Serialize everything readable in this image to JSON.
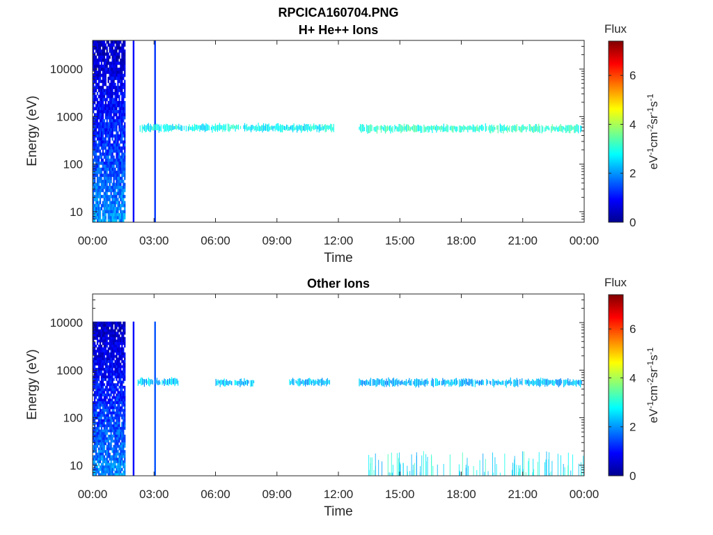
{
  "figure": {
    "filename": "RPCICA160704.PNG"
  },
  "colormap": [
    "#00008f",
    "#0000ff",
    "#0080ff",
    "#00ffff",
    "#80ff80",
    "#ffff00",
    "#ff8000",
    "#ff0000",
    "#800000"
  ],
  "chart_data": [
    {
      "type": "heatmap",
      "title": "RPCICA160704.PNG",
      "subtitle": "H+ He++ Ions",
      "xlabel": "Time",
      "ylabel": "Energy (eV)",
      "x_ticks": [
        "00:00",
        "03:00",
        "06:00",
        "09:00",
        "12:00",
        "15:00",
        "18:00",
        "21:00",
        "00:00"
      ],
      "x_tick_hours": [
        0,
        3,
        6,
        9,
        12,
        15,
        18,
        21,
        24
      ],
      "xlim_hours": [
        0,
        24
      ],
      "y_ticks": [
        "10",
        "100",
        "1000",
        "10000"
      ],
      "y_tick_values": [
        10,
        100,
        1000,
        10000
      ],
      "y_scale": "log",
      "ylim": [
        6,
        40000
      ],
      "colorbar": {
        "label": "Flux",
        "units": "eV-1cm-2sr-1s-1",
        "ticks": [
          "0",
          "2",
          "4",
          "6"
        ],
        "tick_values": [
          0,
          2,
          4,
          6
        ],
        "range": [
          0,
          7.4
        ]
      },
      "features": [
        {
          "kind": "broadband_burst",
          "t_start": 0.0,
          "t_end": 1.6,
          "e_min": 6,
          "e_max": 40000,
          "flux": 1.0
        },
        {
          "kind": "vertical_line",
          "t": 2.0,
          "e_min": 6,
          "e_max": 40000,
          "flux": 1.0
        },
        {
          "kind": "vertical_line",
          "t": 3.05,
          "e_min": 6,
          "e_max": 40000,
          "flux": 1.3
        },
        {
          "kind": "band",
          "t_start": 2.3,
          "t_end": 11.8,
          "energy": 580,
          "flux": 2.8
        },
        {
          "kind": "band",
          "t_start": 13.0,
          "t_end": 23.9,
          "energy": 560,
          "flux": 3.1
        }
      ]
    },
    {
      "type": "heatmap",
      "title": "Other Ions",
      "xlabel": "Time",
      "ylabel": "Energy (eV)",
      "x_ticks": [
        "00:00",
        "03:00",
        "06:00",
        "09:00",
        "12:00",
        "15:00",
        "18:00",
        "21:00",
        "00:00"
      ],
      "x_tick_hours": [
        0,
        3,
        6,
        9,
        12,
        15,
        18,
        21,
        24
      ],
      "xlim_hours": [
        0,
        24
      ],
      "y_ticks": [
        "10",
        "100",
        "1000",
        "10000"
      ],
      "y_tick_values": [
        10,
        100,
        1000,
        10000
      ],
      "y_scale": "log",
      "ylim": [
        6,
        40000
      ],
      "colorbar": {
        "label": "Flux",
        "units": "eV-1cm-2sr-1s-1",
        "ticks": [
          "0",
          "2",
          "4",
          "6"
        ],
        "tick_values": [
          0,
          2,
          4,
          6
        ],
        "range": [
          0,
          7.4
        ]
      },
      "features": [
        {
          "kind": "broadband_burst",
          "t_start": 0.0,
          "t_end": 1.6,
          "e_min": 6,
          "e_max": 10500,
          "flux": 1.0
        },
        {
          "kind": "vertical_line",
          "t": 2.0,
          "e_min": 6,
          "e_max": 10500,
          "flux": 1.0
        },
        {
          "kind": "vertical_line",
          "t": 3.05,
          "e_min": 6,
          "e_max": 10500,
          "flux": 1.5
        },
        {
          "kind": "band",
          "t_start": 2.2,
          "t_end": 4.2,
          "energy": 560,
          "flux": 2.3
        },
        {
          "kind": "band",
          "t_start": 6.0,
          "t_end": 7.9,
          "energy": 540,
          "flux": 2.3
        },
        {
          "kind": "band",
          "t_start": 9.6,
          "t_end": 11.6,
          "energy": 560,
          "flux": 2.3
        },
        {
          "kind": "band",
          "t_start": 13.0,
          "t_end": 23.9,
          "energy": 550,
          "flux": 2.2
        },
        {
          "kind": "low_energy_scatter",
          "t_start": 13.3,
          "t_end": 24.0,
          "e_min": 6,
          "e_max": 20,
          "flux": 2.7
        }
      ]
    }
  ]
}
